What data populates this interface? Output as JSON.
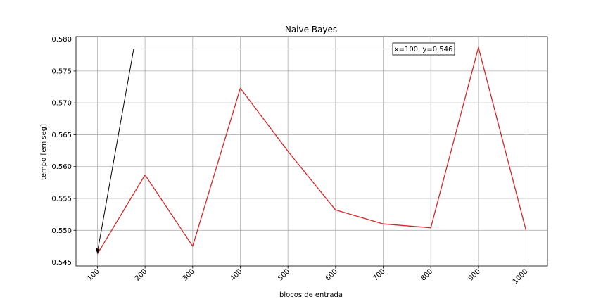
{
  "chart_data": {
    "type": "line",
    "title": "Naive Bayes",
    "xlabel": "blocos de entrada",
    "ylabel": "tempo [em seg]",
    "x": [
      100,
      200,
      300,
      400,
      500,
      600,
      700,
      800,
      900,
      1000
    ],
    "x_tick_labels": [
      "100",
      "200",
      "300",
      "400",
      "500",
      "600",
      "700",
      "800",
      "900",
      "1000"
    ],
    "y_ticks": [
      0.545,
      0.55,
      0.555,
      0.56,
      0.565,
      0.57,
      0.575,
      0.58
    ],
    "y_tick_labels": [
      "0.545",
      "0.550",
      "0.555",
      "0.560",
      "0.565",
      "0.570",
      "0.575",
      "0.580"
    ],
    "xlim": [
      55,
      1045
    ],
    "ylim": [
      0.5444,
      0.5804
    ],
    "grid": true,
    "series": [
      {
        "color": "#d62728",
        "values": [
          0.5463,
          0.5587,
          0.5475,
          0.5723,
          0.5624,
          0.5532,
          0.551,
          0.5504,
          0.5787,
          0.55
        ]
      }
    ],
    "annotation": {
      "text": "x=100, y=0.546",
      "point": [
        100,
        0.5463
      ]
    }
  }
}
